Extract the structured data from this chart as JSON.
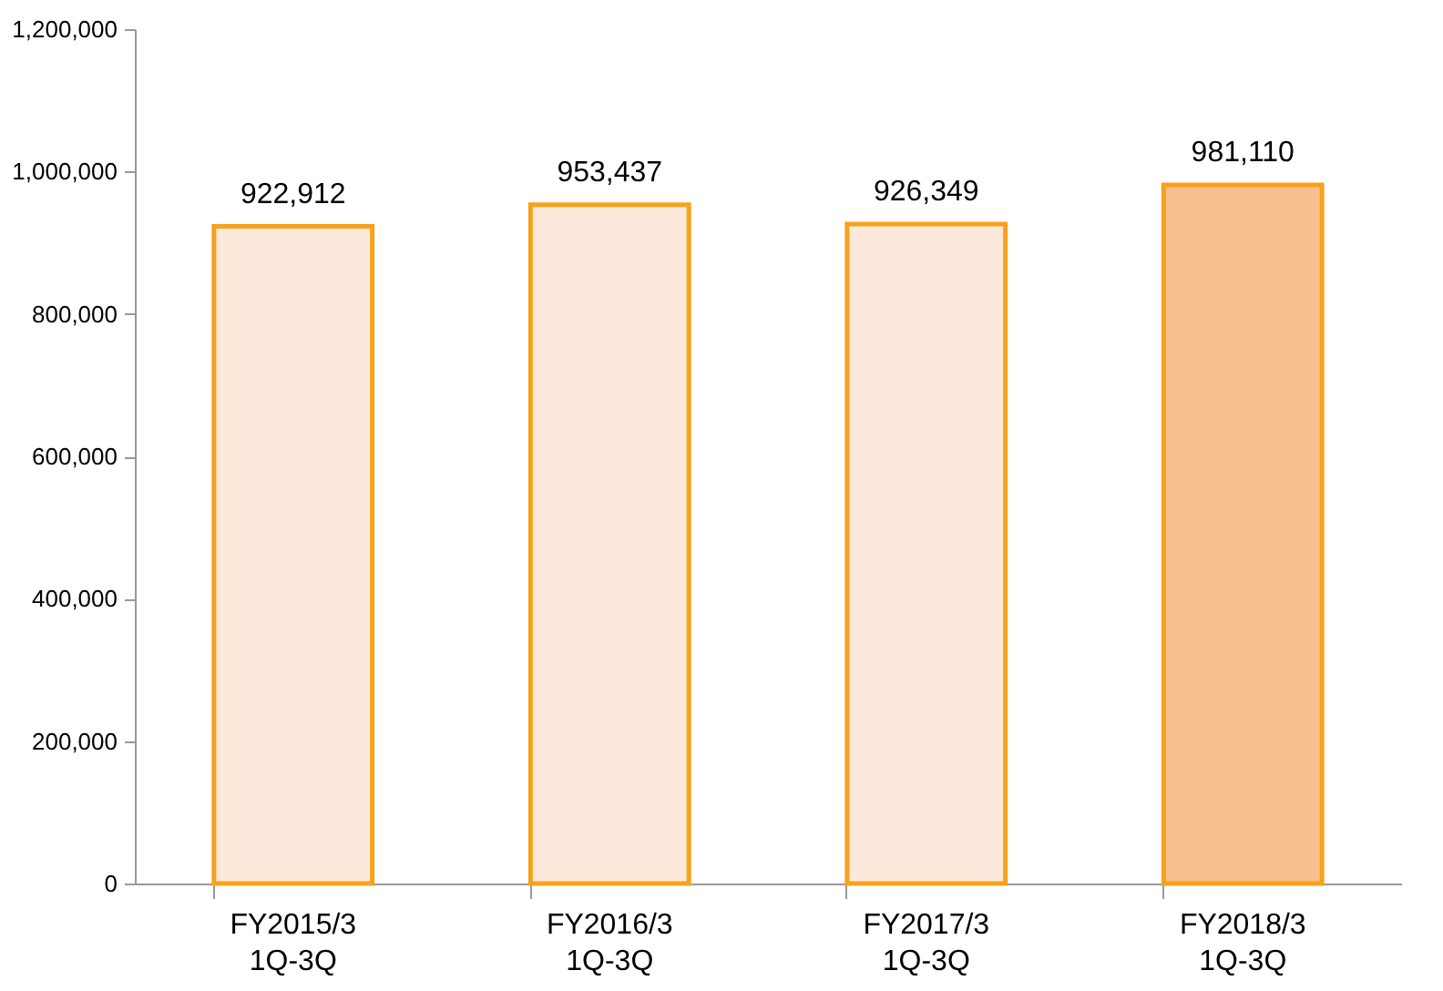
{
  "chart_data": {
    "type": "bar",
    "categories": [
      "FY2015/3 1Q-3Q",
      "FY2016/3 1Q-3Q",
      "FY2017/3 1Q-3Q",
      "FY2018/3 1Q-3Q"
    ],
    "values": [
      922912,
      953437,
      926349,
      981110
    ],
    "value_labels": [
      "922,912",
      "953,437",
      "926,349",
      "981,110"
    ],
    "colors": [
      "#fce9db",
      "#fce9db",
      "#fce9db",
      "#f9c08f"
    ],
    "ylim": [
      0,
      1200000
    ],
    "yticks": [
      {
        "value": 0,
        "label": "0"
      },
      {
        "value": 200000,
        "label": "200,000"
      },
      {
        "value": 400000,
        "label": "400,000"
      },
      {
        "value": 600000,
        "label": "600,000"
      },
      {
        "value": 800000,
        "label": "800,000"
      },
      {
        "value": 1000000,
        "label": "1,000,000"
      },
      {
        "value": 1200000,
        "label": "1,200,000"
      }
    ],
    "grid": false,
    "legend": false
  }
}
